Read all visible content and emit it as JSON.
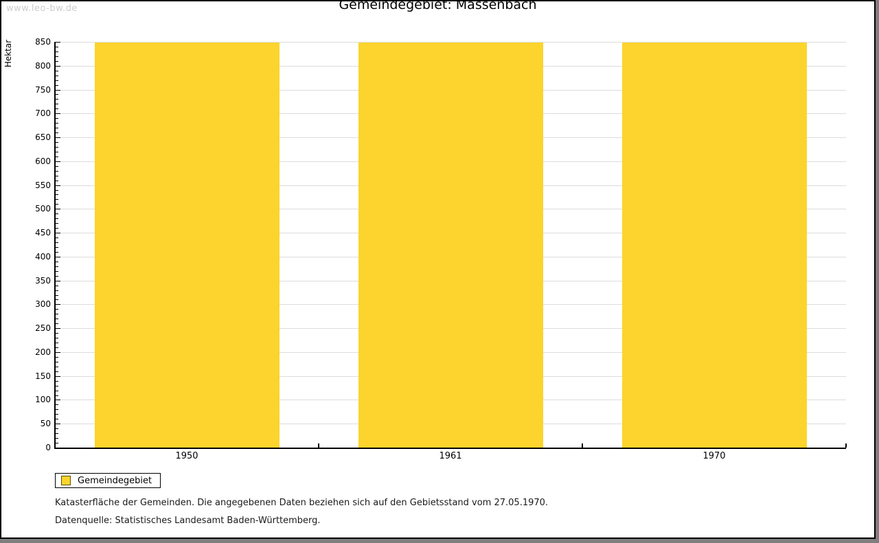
{
  "watermark": "www.leo-bw.de",
  "title": "Gemeindegebiet: Massenbach",
  "legend": {
    "label": "Gemeindegebiet",
    "swatch_color": "#FCD42D"
  },
  "footer": {
    "line1": "Katasterfläche der Gemeinden. Die angegebenen Daten beziehen sich auf den Gebietsstand vom 27.05.1970.",
    "line2": "Datenquelle: Statistisches Landesamt Baden-Württemberg."
  },
  "colors": {
    "bar": "#FCD42D",
    "grid": "#DCDCDC",
    "axis": "#000000",
    "watermark": "#CCCCCC",
    "frame_shadow": "#7F7F7F"
  },
  "chart_data": {
    "type": "bar",
    "title": "Gemeindegebiet: Massenbach",
    "categories": [
      "1950",
      "1961",
      "1970"
    ],
    "series": [
      {
        "name": "Gemeindegebiet",
        "color": "#FCD42D",
        "values": [
          848,
          848,
          848
        ]
      }
    ],
    "xlabel": "",
    "ylabel": "Hektar",
    "ylim": [
      0,
      850
    ],
    "ytick_step": 50,
    "minor_tick_step": 10,
    "grid": true,
    "gridline_color": "#DCDCDC",
    "bar_width_fraction": 0.7,
    "legend_position": "bottom-left"
  }
}
